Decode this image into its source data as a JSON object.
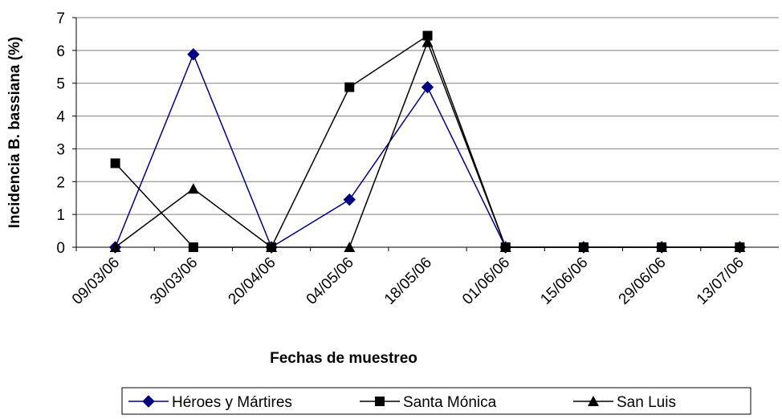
{
  "chart_data": {
    "type": "line",
    "x_label": "Fechas de muestreo",
    "y_label": "Incidencia B. bassiana (%)",
    "categories": [
      "09/03/06",
      "30/03/06",
      "20/04/06",
      "04/05/06",
      "18/05/06",
      "01/06/06",
      "15/06/06",
      "29/06/06",
      "13/07/06"
    ],
    "series": [
      {
        "name": "Héroes y Mártires",
        "color": "#000080",
        "marker": "diamond",
        "values": [
          0,
          5.88,
          0,
          1.45,
          4.88,
          0,
          0,
          0,
          0
        ]
      },
      {
        "name": "Santa Mónica",
        "color": "#000000",
        "marker": "square",
        "values": [
          2.56,
          0,
          0,
          4.88,
          6.45,
          0,
          0,
          0,
          0
        ]
      },
      {
        "name": "San Luis",
        "color": "#000000",
        "marker": "triangle",
        "values": [
          0,
          1.78,
          0,
          0,
          6.25,
          0,
          0,
          0,
          0
        ]
      }
    ],
    "ylim": [
      0,
      7
    ],
    "yticks": [
      0,
      1,
      2,
      3,
      4,
      5,
      6,
      7
    ],
    "grid": true,
    "legend": "bottom"
  }
}
